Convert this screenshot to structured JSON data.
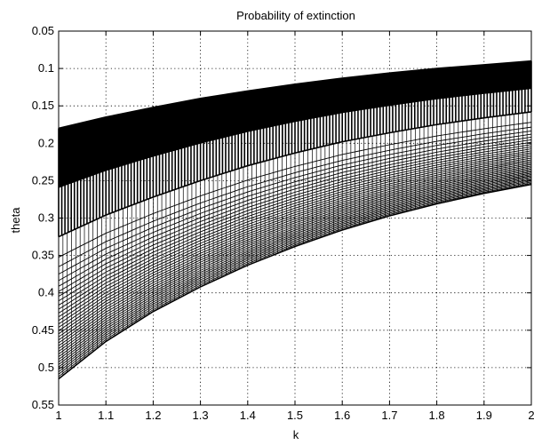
{
  "chart_data": {
    "type": "line",
    "title": "Probability of extinction",
    "xlabel": "k",
    "ylabel": "theta",
    "xlim": [
      1,
      2
    ],
    "ylim": [
      0.05,
      0.55
    ],
    "y_reversed": true,
    "grid": true,
    "grid_style": "dotted",
    "x_ticks": [
      "1",
      "1.1",
      "1.2",
      "1.3",
      "1.4",
      "1.5",
      "1.6",
      "1.7",
      "1.8",
      "1.9",
      "2"
    ],
    "y_ticks": [
      "0.05",
      "0.1",
      "0.15",
      "0.2",
      "0.25",
      "0.3",
      "0.35",
      "0.4",
      "0.45",
      "0.5",
      "0.55"
    ],
    "series": [
      {
        "x": [
          1,
          1.1,
          1.2,
          1.3,
          1.4,
          1.5,
          1.6,
          1.7,
          1.8,
          1.9,
          2
        ],
        "values": [
          0.18,
          0.165,
          0.152,
          0.14,
          0.13,
          0.121,
          0.113,
          0.106,
          0.1,
          0.095,
          0.09
        ]
      },
      {
        "x": [
          1,
          1.1,
          1.2,
          1.3,
          1.4,
          1.5,
          1.6,
          1.7,
          1.8,
          1.9,
          2
        ],
        "values": [
          0.325,
          0.296,
          0.272,
          0.25,
          0.23,
          0.213,
          0.198,
          0.186,
          0.175,
          0.166,
          0.158
        ]
      },
      {
        "x": [
          1,
          1.1,
          1.2,
          1.3,
          1.4,
          1.5,
          1.6,
          1.7,
          1.8,
          1.9,
          2
        ],
        "values": [
          0.515,
          0.465,
          0.425,
          0.392,
          0.363,
          0.338,
          0.316,
          0.297,
          0.281,
          0.267,
          0.255
        ]
      }
    ],
    "line_color": "#000000"
  }
}
